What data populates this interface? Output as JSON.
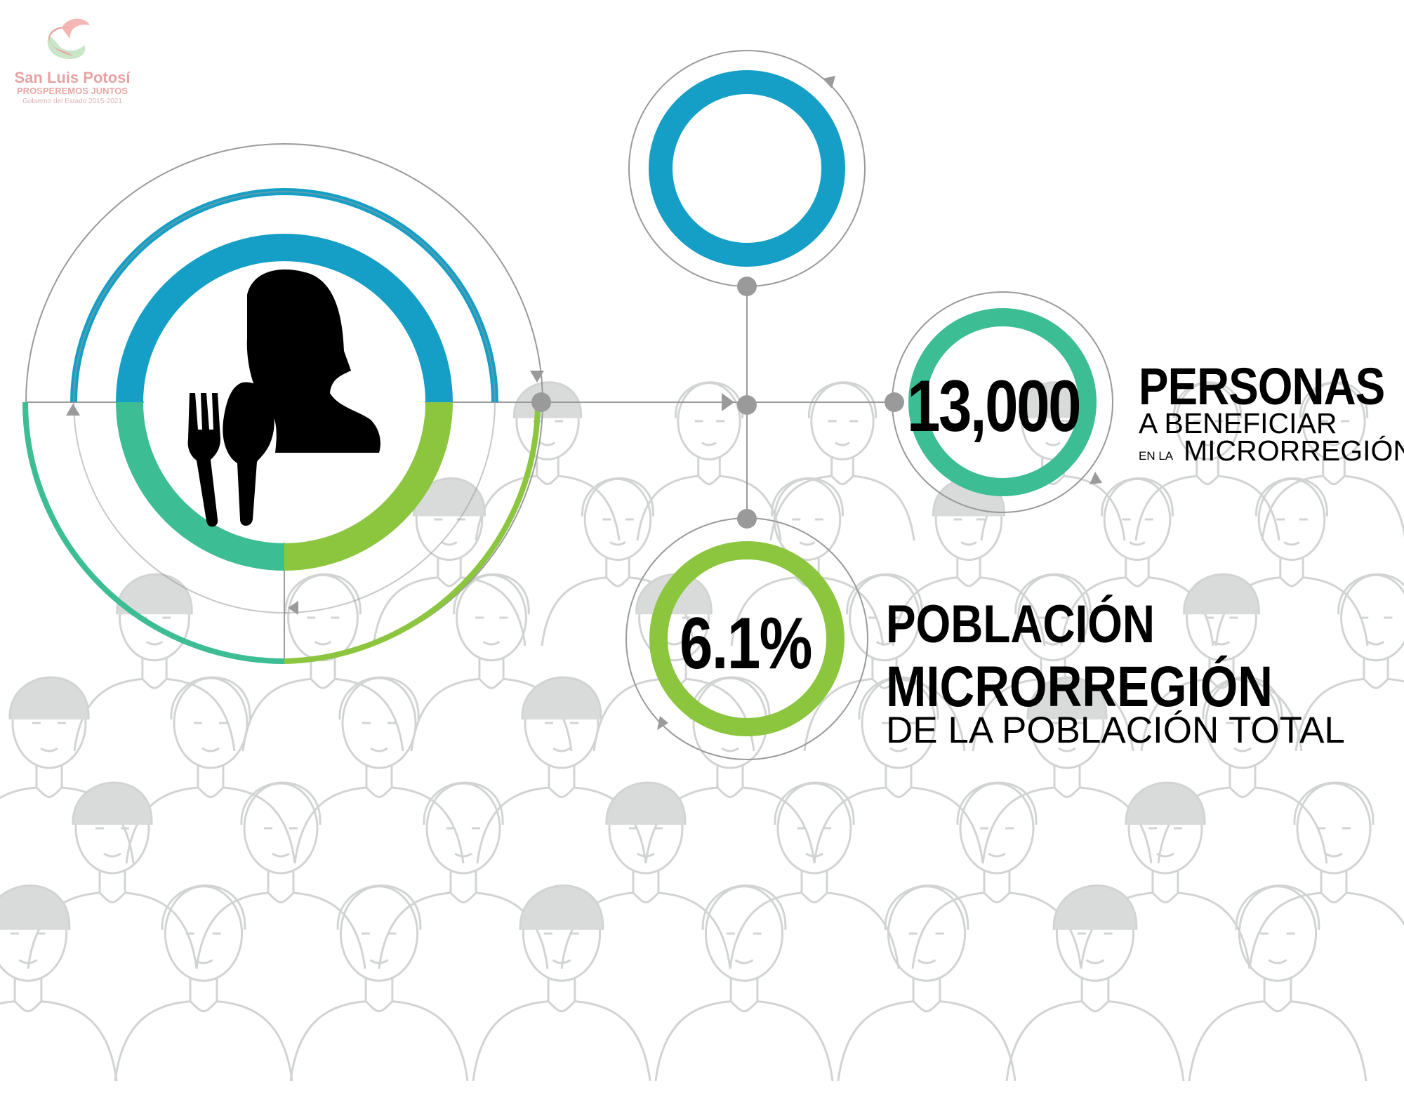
{
  "logo": {
    "line1": "San Luis Potosí",
    "line2": "PROSPEREMOS JUNTOS",
    "line3": "Gobierno del Estado 2015-2021"
  },
  "stats": {
    "beneficiaries": {
      "number": "13,000",
      "title": "PERSONAS",
      "line1": "A BENEFICIAR",
      "prefix": "EN LA",
      "line2": "MICRORREGIÓN"
    },
    "population": {
      "percent": "6.1%",
      "title1": "POBLACIÓN",
      "title2": "MICRORREGIÓN",
      "subtitle": "DE LA POBLACIÓN TOTAL"
    }
  },
  "icons": [
    "person-silhouette-icon",
    "fork-icon",
    "spoon-icon"
  ],
  "colors": {
    "blue": "#159fc6",
    "teal": "#3dbd94",
    "green": "#8cc63f",
    "line": "#9a9a9a",
    "crowd": "#d4d6d6"
  }
}
